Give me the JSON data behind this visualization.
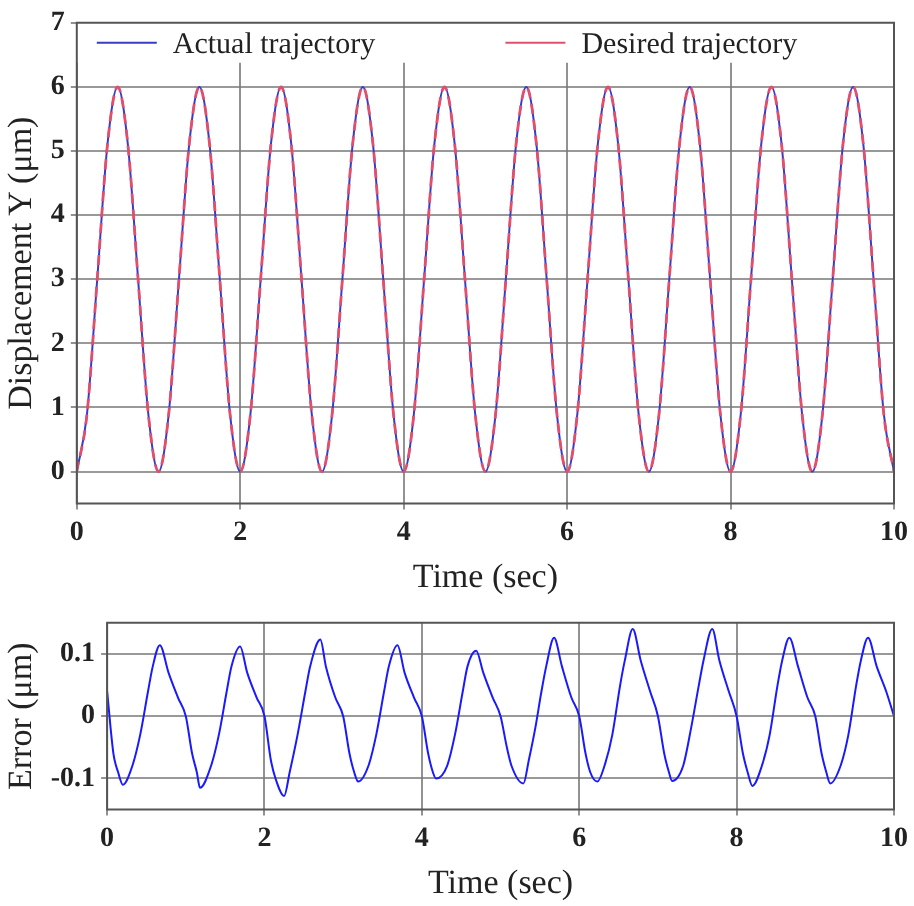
{
  "chart_data": [
    {
      "type": "line",
      "xlabel": "Time (sec)",
      "ylabel": "Displacement Y (μm)",
      "xlim": [
        0,
        10
      ],
      "xticks": [
        0,
        2,
        4,
        6,
        8,
        10
      ],
      "ylim": [
        -0.5,
        7
      ],
      "yticks": [
        0,
        1,
        2,
        3,
        4,
        5,
        6,
        7
      ],
      "grid": true,
      "legend": "top",
      "marker": "none",
      "x": [
        0,
        0.125,
        0.25,
        0.375,
        0.5,
        0.625,
        0.75,
        0.875,
        1,
        1.125,
        1.25,
        1.375,
        1.5,
        1.625,
        1.75,
        1.875,
        2,
        2.125,
        2.25,
        2.375,
        2.5,
        2.625,
        2.75,
        2.875,
        3,
        3.125,
        3.25,
        3.375,
        3.5,
        3.625,
        3.75,
        3.875,
        4,
        4.125,
        4.25,
        4.375,
        4.5,
        4.625,
        4.75,
        4.875,
        5,
        5.125,
        5.25,
        5.375,
        5.5,
        5.625,
        5.75,
        5.875,
        6,
        6.125,
        6.25,
        6.375,
        6.5,
        6.625,
        6.75,
        6.875,
        7,
        7.125,
        7.25,
        7.375,
        7.5,
        7.625,
        7.75,
        7.875,
        8,
        8.125,
        8.25,
        8.375,
        8.5,
        8.625,
        8.75,
        8.875,
        9,
        9.125,
        9.25,
        9.375,
        9.5,
        9.625,
        9.75,
        9.875,
        10
      ],
      "series": [
        {
          "name": "Actual trajectory",
          "color": "#3b3bc8",
          "line_style": "solid",
          "values": [
            0,
            0.9,
            3,
            5.1,
            6,
            5.1,
            3,
            0.9,
            0,
            0.9,
            3,
            5.1,
            6,
            5.1,
            3,
            0.9,
            0,
            0.9,
            3,
            5.1,
            6,
            5.1,
            3,
            0.9,
            0,
            0.9,
            3,
            5.1,
            6,
            5.1,
            3,
            0.9,
            0,
            0.9,
            3,
            5.1,
            6,
            5.1,
            3,
            0.9,
            0,
            0.9,
            3,
            5.1,
            6,
            5.1,
            3,
            0.9,
            0,
            0.9,
            3,
            5.1,
            6,
            5.1,
            3,
            0.9,
            0,
            0.9,
            3,
            5.1,
            6,
            5.1,
            3,
            0.9,
            0,
            0.9,
            3,
            5.1,
            6,
            5.1,
            3,
            0.9,
            0,
            0.9,
            3,
            5.1,
            6,
            5.1,
            3,
            0.9,
            0
          ]
        },
        {
          "name": "Desired trajectory",
          "color": "#e0506e",
          "line_style": "dashed",
          "values": [
            0,
            0.9,
            3,
            5.1,
            6,
            5.1,
            3,
            0.9,
            0,
            0.9,
            3,
            5.1,
            6,
            5.1,
            3,
            0.9,
            0,
            0.9,
            3,
            5.1,
            6,
            5.1,
            3,
            0.9,
            0,
            0.9,
            3,
            5.1,
            6,
            5.1,
            3,
            0.9,
            0,
            0.9,
            3,
            5.1,
            6,
            5.1,
            3,
            0.9,
            0,
            0.9,
            3,
            5.1,
            6,
            5.1,
            3,
            0.9,
            0,
            0.9,
            3,
            5.1,
            6,
            5.1,
            3,
            0.9,
            0,
            0.9,
            3,
            5.1,
            6,
            5.1,
            3,
            0.9,
            0,
            0.9,
            3,
            5.1,
            6,
            5.1,
            3,
            0.9,
            0,
            0.9,
            3,
            5.1,
            6,
            5.1,
            3,
            0.9,
            0
          ]
        }
      ]
    },
    {
      "type": "line",
      "xlabel": "Time (sec)",
      "ylabel": "Error (μm)",
      "xlim": [
        0,
        10
      ],
      "xticks": [
        0,
        2,
        4,
        6,
        8,
        10
      ],
      "ylim": [
        -0.15,
        0.15
      ],
      "yticks": [
        -0.1,
        0,
        0.1
      ],
      "grid": true,
      "marker": "none",
      "x": [
        0,
        0.08,
        0.14,
        0.2,
        0.32,
        0.42,
        0.52,
        0.58,
        0.67,
        0.78,
        0.9,
        1,
        1.08,
        1.14,
        1.18,
        1.32,
        1.42,
        1.52,
        1.58,
        1.69,
        1.78,
        1.9,
        2,
        2.08,
        2.14,
        2.25,
        2.32,
        2.42,
        2.52,
        2.58,
        2.71,
        2.78,
        2.9,
        3,
        3.08,
        3.14,
        3.19,
        3.32,
        3.42,
        3.52,
        3.58,
        3.69,
        3.78,
        3.9,
        4,
        4.08,
        4.14,
        4.18,
        4.32,
        4.42,
        4.52,
        4.58,
        4.69,
        4.78,
        4.9,
        5,
        5.08,
        5.14,
        5.29,
        5.36,
        5.44,
        5.52,
        5.58,
        5.68,
        5.78,
        5.9,
        6,
        6.08,
        6.14,
        6.23,
        6.32,
        6.42,
        6.52,
        6.58,
        6.68,
        6.78,
        6.9,
        7,
        7.08,
        7.14,
        7.18,
        7.32,
        7.42,
        7.52,
        7.58,
        7.69,
        7.78,
        7.9,
        8,
        8.08,
        8.14,
        8.2,
        8.32,
        8.42,
        8.52,
        8.58,
        8.67,
        8.78,
        8.9,
        9,
        9.08,
        9.14,
        9.19,
        9.32,
        9.42,
        9.52,
        9.58,
        9.67,
        9.78,
        9.9,
        10
      ],
      "series": [
        {
          "color": "#1a1aff",
          "values": [
            0.04,
            -0.06,
            -0.09,
            -0.11,
            -0.08,
            -0.03,
            0.04,
            0.08,
            0.114,
            0.07,
            0.03,
            0,
            -0.06,
            -0.09,
            -0.115,
            -0.08,
            -0.03,
            0.04,
            0.08,
            0.112,
            0.07,
            0.03,
            0,
            -0.07,
            -0.1,
            -0.128,
            -0.09,
            -0.03,
            0.04,
            0.08,
            0.123,
            0.08,
            0.03,
            0,
            -0.06,
            -0.09,
            -0.105,
            -0.08,
            -0.03,
            0.04,
            0.08,
            0.114,
            0.07,
            0.03,
            0,
            -0.06,
            -0.09,
            -0.1,
            -0.08,
            -0.03,
            0.04,
            0.08,
            0.105,
            0.07,
            0.03,
            0,
            -0.05,
            -0.08,
            -0.108,
            -0.07,
            -0.02,
            0.04,
            0.08,
            0.126,
            0.08,
            0.03,
            0,
            -0.06,
            -0.09,
            -0.105,
            -0.08,
            -0.03,
            0.05,
            0.09,
            0.14,
            0.09,
            0.04,
            0,
            -0.06,
            -0.09,
            -0.104,
            -0.08,
            -0.02,
            0.05,
            0.09,
            0.14,
            0.09,
            0.04,
            0,
            -0.06,
            -0.09,
            -0.112,
            -0.08,
            -0.03,
            0.05,
            0.09,
            0.126,
            0.08,
            0.03,
            0,
            -0.06,
            -0.09,
            -0.108,
            -0.08,
            -0.03,
            0.05,
            0.09,
            0.126,
            0.08,
            0.04,
            0
          ]
        }
      ]
    }
  ]
}
